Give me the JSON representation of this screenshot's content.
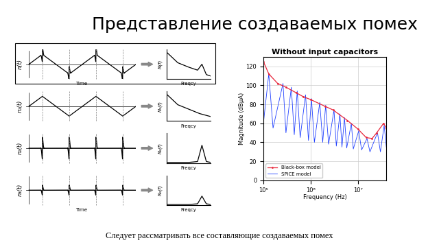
{
  "slide": {
    "title": "Представление создаваемых помех",
    "caption": "Следует рассматривать все составляющие создаваемых помех",
    "rows": [
      {
        "signal": "n(t)",
        "spectrum": "N(f)",
        "time_axis": "Time",
        "freq_axis": "Freqcy"
      },
      {
        "signal": "n₁(t)",
        "spectrum": "N₁(f)",
        "freq_axis": "Freqcy"
      },
      {
        "signal": "n₂(t)",
        "spectrum": "N₂(f)",
        "freq_axis": "Freqcy"
      },
      {
        "signal": "n₃(t)",
        "spectrum": "N₃(f)",
        "time_axis": "Time",
        "freq_axis": "Freqcy"
      }
    ]
  },
  "chart_data": {
    "type": "line",
    "title": "Without input capacitors",
    "x_label": "Frequency (Hz)",
    "y_label": "Magnitude (dBµA)",
    "log": "x",
    "grid": true,
    "legend": "lower left",
    "xlim": [
      100000,
      40000000
    ],
    "xticks": [
      {
        "value": 100000,
        "label": "10⁵"
      },
      {
        "value": 1000000,
        "label": "10⁶"
      },
      {
        "value": 10000000,
        "label": "10⁷"
      }
    ],
    "ylim": [
      0,
      130
    ],
    "yticks": [
      0,
      20,
      40,
      60,
      80,
      100,
      120
    ],
    "series": [
      {
        "name": "SPICE model",
        "color": "#1f3fff",
        "x": [
          100000,
          130000,
          160000,
          260000,
          300000,
          390000,
          450000,
          520000,
          600000,
          780000,
          900000,
          1040000,
          1200000,
          1560000,
          1800000,
          2080000,
          2400000,
          3120000,
          3500000,
          4160000,
          4600000,
          5200000,
          5800000,
          7280000,
          8000000,
          10400000,
          12000000,
          15600000,
          18000000,
          26000000,
          30000000,
          36000000,
          40000000
        ],
        "values": [
          60,
          112,
          55,
          102,
          50,
          98,
          48,
          94,
          45,
          90,
          42,
          86,
          40,
          82,
          40,
          79,
          38,
          74,
          36,
          70,
          35,
          66,
          34,
          60,
          33,
          52,
          32,
          44,
          30,
          50,
          30,
          58,
          35
        ]
      },
      {
        "name": "Black-box model",
        "color": "#e8283c",
        "x": [
          100000,
          130000,
          200000,
          300000,
          500000,
          700000,
          1000000,
          2000000,
          3000000,
          6000000,
          10000000,
          15000000,
          20000000,
          25000000,
          35000000,
          40000000
        ],
        "values": [
          125,
          112,
          102,
          98,
          92,
          88,
          85,
          78,
          74,
          63,
          54,
          45,
          44,
          50,
          60,
          55
        ]
      }
    ]
  }
}
